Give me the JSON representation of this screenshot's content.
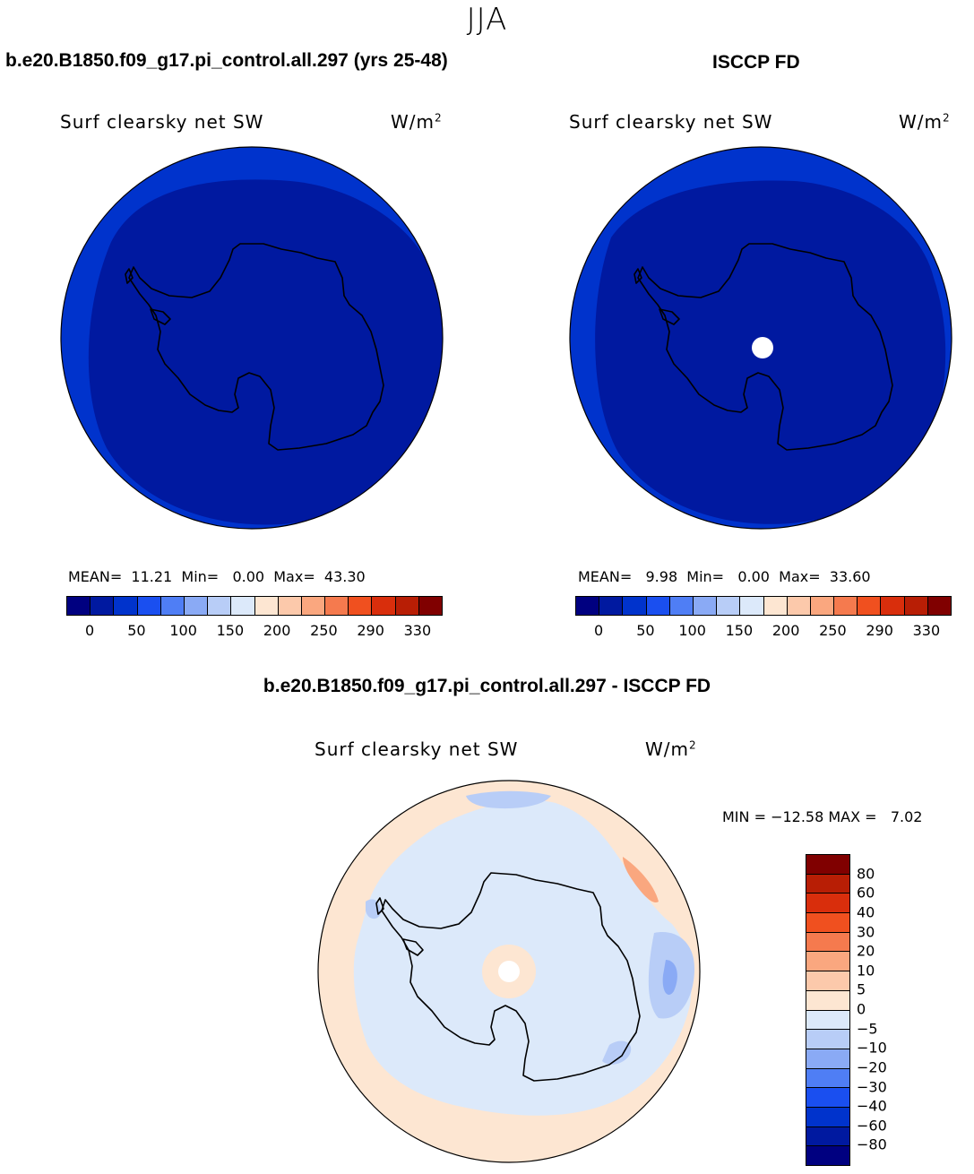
{
  "figure": {
    "season": "JJA"
  },
  "panels": {
    "model": {
      "case": "b.e20.B1850.f09_g17.pi_control.all.297 (yrs 25-48)",
      "field": "Surf clearsky net SW",
      "units": "W/m",
      "units_sup": "2",
      "stats": "MEAN=  11.21  Min=   0.00  Max=  43.30",
      "mean": 11.21,
      "min": 0.0,
      "max": 43.3
    },
    "obs": {
      "case": "ISCCP FD",
      "field": "Surf clearsky net SW",
      "units": "W/m",
      "units_sup": "2",
      "stats": "MEAN=   9.98  Min=   0.00  Max=  33.60",
      "mean": 9.98,
      "min": 0.0,
      "max": 33.6
    },
    "diff": {
      "case": "b.e20.B1850.f09_g17.pi_control.all.297 - ISCCP FD",
      "field": "Surf clearsky net SW",
      "units": "W/m",
      "units_sup": "2",
      "stats": "MIN = −12.58 MAX =   7.02",
      "min": -12.58,
      "max": 7.02
    }
  },
  "colorbar_abs": {
    "colors": [
      "#000080",
      "#0019a0",
      "#0033cc",
      "#1a4ff0",
      "#4f7ef5",
      "#8aaaf5",
      "#b8cdf7",
      "#dce9fa",
      "#fde6d2",
      "#fcc9ab",
      "#faa77f",
      "#f57a4e",
      "#f0501f",
      "#d92e0c",
      "#b81e05",
      "#800000"
    ],
    "labels": [
      "0",
      "50",
      "100",
      "150",
      "200",
      "250",
      "290",
      "330"
    ]
  },
  "colorbar_diff": {
    "colors": [
      "#800000",
      "#b81e05",
      "#d92e0c",
      "#f0501f",
      "#f57a4e",
      "#faa77f",
      "#fcc9ab",
      "#fde6d2",
      "#dce9fa",
      "#b8cdf7",
      "#8aaaf5",
      "#4f7ef5",
      "#1a4ff0",
      "#0033cc",
      "#0019a0",
      "#000080"
    ],
    "labels": [
      "80",
      "60",
      "40",
      "30",
      "20",
      "10",
      "5",
      "0",
      "−5",
      "−10",
      "−20",
      "−30",
      "−40",
      "−60",
      "−80"
    ]
  },
  "map_colors": {
    "deep": "#0019a0",
    "outer": "#0033cc",
    "diff_pos": "#fde6d2",
    "diff_neg": "#dce9fa",
    "diff_neg2": "#b8cdf7",
    "diff_neg3": "#8aaaf5",
    "diff_pos2": "#faa77f",
    "missing": "#ffffff",
    "coast": "#000000"
  }
}
